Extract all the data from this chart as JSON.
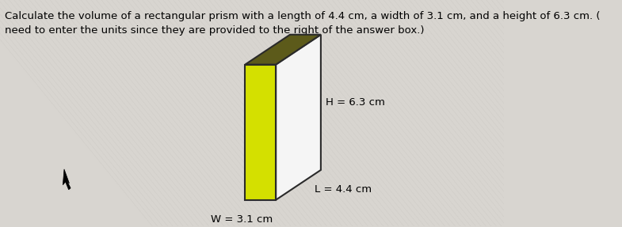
{
  "title_line1": "Calculate the volume of a rectangular prism with a length of 4.4 cm, a width of 3.1 cm, and a height of 6.3 cm. (",
  "title_line2": "need to enter the units since they are provided to the right of the answer box.)",
  "title_fontsize": 9.5,
  "label_H": "H = 6.3 cm",
  "label_W": "W = 3.1 cm",
  "label_L": "L = 4.4 cm",
  "label_fontsize": 9.5,
  "bg_color": "#d8d5d0",
  "front_face_color": "#d4e000",
  "side_face_color": "#f5f5f5",
  "top_face_color": "#5c5a1a",
  "edge_color": "#2a2a2a",
  "cursor_color": "#000000"
}
